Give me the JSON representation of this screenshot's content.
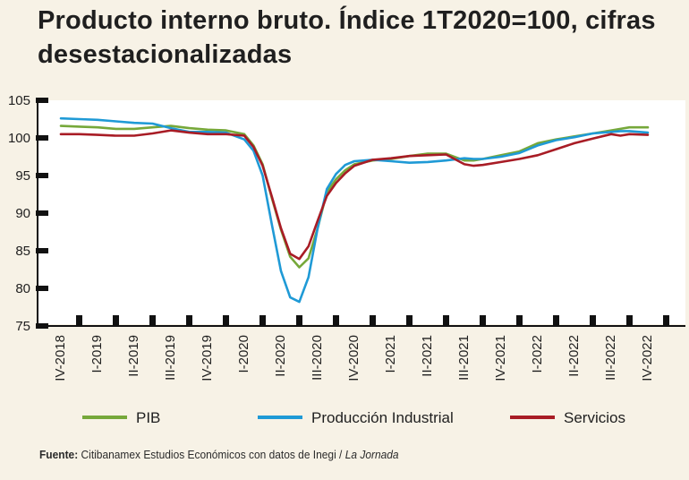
{
  "title": "Producto interno bruto. Índice 1T2020=100, cifras desestacionalizadas",
  "source": {
    "label": "Fuente:",
    "text": "Citibanamex Estudios Económicos con datos de Inegi / ",
    "italic": "La Jornada"
  },
  "colors": {
    "background": "#f7f2e6",
    "plot_background": "#ffffff",
    "pib": "#76a83a",
    "industrial": "#1f9ad6",
    "servicios": "#a81c25"
  },
  "chart_data": {
    "type": "line",
    "ylim": [
      75,
      105
    ],
    "yticks": [
      75,
      80,
      85,
      90,
      95,
      100,
      105
    ],
    "grid": false,
    "legend_position": "bottom",
    "x_tick_labels": [
      "IV-2018",
      "I-2019",
      "II-2019",
      "III-2019",
      "IV-2019",
      "I-2020",
      "II-2020",
      "III-2020",
      "IV-2020",
      "I-2021",
      "II-2021",
      "III-2021",
      "IV-2021",
      "I-2022",
      "II-2022",
      "III-2022",
      "IV-2022"
    ],
    "x": [
      0,
      0.5,
      1,
      1.5,
      2,
      2.5,
      3,
      3.5,
      4,
      4.5,
      5,
      5.25,
      5.5,
      5.75,
      6,
      6.25,
      6.5,
      6.75,
      7,
      7.25,
      7.5,
      7.75,
      8,
      8.5,
      9,
      9.5,
      10,
      10.5,
      11,
      11.25,
      11.5,
      12,
      12.5,
      13,
      13.5,
      14,
      14.5,
      15,
      15.25,
      15.5,
      16
    ],
    "series": [
      {
        "name": "PIB",
        "color_key": "pib",
        "values": [
          101.6,
          101.5,
          101.4,
          101.2,
          101.2,
          101.4,
          101.6,
          101.3,
          101.1,
          101.0,
          100.5,
          99.0,
          96.5,
          92.0,
          87.8,
          84.2,
          82.8,
          84.0,
          88.0,
          92.8,
          94.5,
          95.7,
          96.5,
          97.0,
          97.2,
          97.6,
          97.9,
          97.9,
          97.0,
          97.0,
          97.2,
          97.7,
          98.2,
          99.3,
          99.8,
          100.2,
          100.6,
          101.0,
          101.2,
          101.4,
          101.4
        ]
      },
      {
        "name": "Producción Industrial",
        "color_key": "industrial",
        "values": [
          102.6,
          102.5,
          102.4,
          102.2,
          102.0,
          101.9,
          101.3,
          100.8,
          100.8,
          100.7,
          99.8,
          98.3,
          95.0,
          88.5,
          82.3,
          78.8,
          78.2,
          81.5,
          88.0,
          93.2,
          95.2,
          96.4,
          96.9,
          97.1,
          96.9,
          96.7,
          96.8,
          97.0,
          97.3,
          97.2,
          97.2,
          97.5,
          98.0,
          99.0,
          99.7,
          100.1,
          100.6,
          100.8,
          100.9,
          100.9,
          100.7
        ]
      },
      {
        "name": "Servicios",
        "color_key": "servicios",
        "values": [
          100.5,
          100.5,
          100.4,
          100.3,
          100.3,
          100.6,
          101.0,
          100.7,
          100.5,
          100.5,
          100.3,
          98.8,
          96.3,
          92.2,
          88.0,
          84.6,
          83.9,
          85.6,
          89.0,
          92.3,
          94.0,
          95.3,
          96.3,
          97.1,
          97.3,
          97.6,
          97.7,
          97.8,
          96.5,
          96.3,
          96.4,
          96.8,
          97.2,
          97.7,
          98.5,
          99.3,
          99.9,
          100.5,
          100.3,
          100.5,
          100.4
        ]
      }
    ]
  }
}
